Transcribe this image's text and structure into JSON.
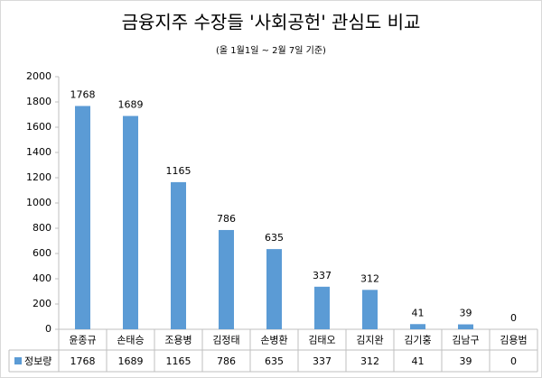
{
  "chart_data": {
    "type": "bar",
    "title": "금융지주 수장들 '사회공헌' 관심도 비교",
    "subtitle": "(올 1월1일 ~ 2월 7일 기준)",
    "categories": [
      "윤종규",
      "손태승",
      "조용병",
      "김정태",
      "손병환",
      "김태오",
      "김지완",
      "김기홍",
      "김남구",
      "김용범"
    ],
    "series": [
      {
        "name": "정보량",
        "color": "#5b9bd5",
        "values": [
          1768,
          1689,
          1165,
          786,
          635,
          337,
          312,
          41,
          39,
          0
        ]
      }
    ],
    "ylim": [
      0,
      2000
    ],
    "yticks": [
      0,
      200,
      400,
      600,
      800,
      1000,
      1200,
      1400,
      1600,
      1800,
      2000
    ],
    "grid": false
  }
}
